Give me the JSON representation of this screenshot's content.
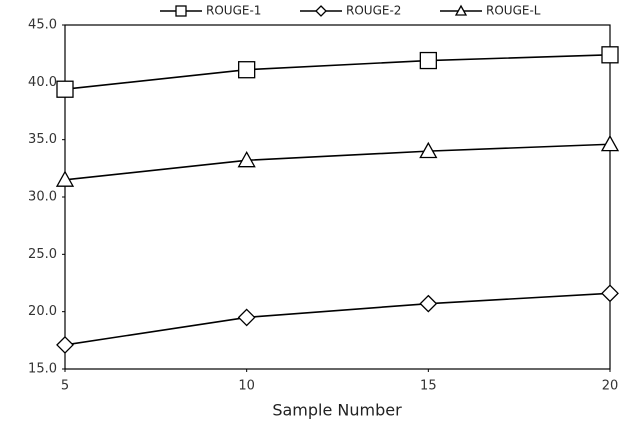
{
  "chart_data": {
    "type": "line",
    "x_label": "Sample Number",
    "x": [
      5,
      10,
      15,
      20
    ],
    "xlim": [
      5,
      20
    ],
    "xticks": [
      5,
      10,
      15,
      20
    ],
    "ylim": [
      15,
      45
    ],
    "yticks": [
      {
        "value": 15,
        "label": "15.0"
      },
      {
        "value": 20,
        "label": "20.0"
      },
      {
        "value": 25,
        "label": "25.0"
      },
      {
        "value": 30,
        "label": "30.0"
      },
      {
        "value": 35,
        "label": "35.0"
      },
      {
        "value": 40,
        "label": "40.0"
      },
      {
        "value": 45,
        "label": "45.0"
      }
    ],
    "grid": false,
    "legend": "top",
    "series": [
      {
        "name": "ROUGE-1",
        "color": "#000000",
        "marker": "square",
        "values": [
          39.4,
          41.1,
          41.9,
          42.4
        ]
      },
      {
        "name": "ROUGE-2",
        "color": "#000000",
        "marker": "diamond",
        "values": [
          17.1,
          19.5,
          20.7,
          21.6
        ]
      },
      {
        "name": "ROUGE-L",
        "color": "#000000",
        "marker": "triangle",
        "values": [
          31.5,
          33.2,
          34.0,
          34.6
        ]
      }
    ]
  }
}
